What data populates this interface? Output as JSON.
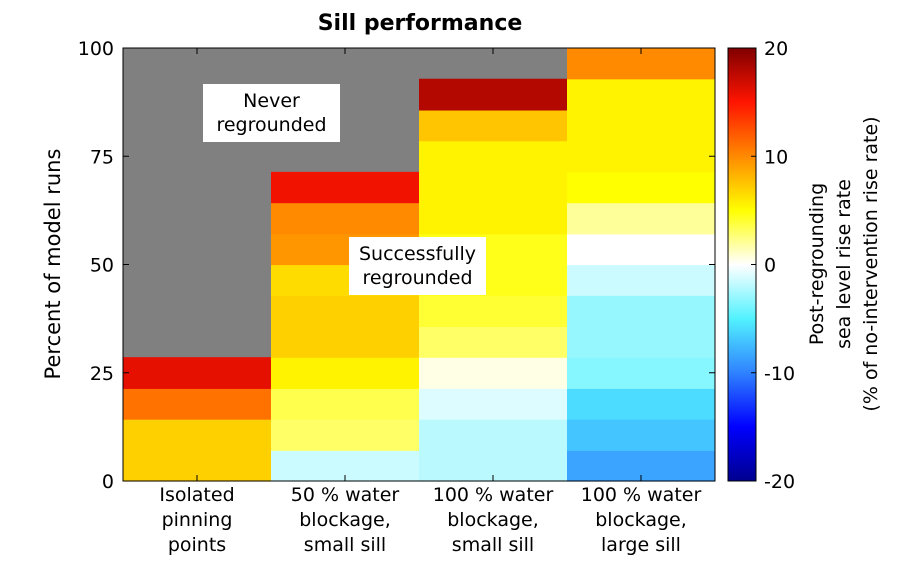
{
  "chart_data": {
    "type": "heatmap",
    "title": "Sill performance",
    "ylabel": "Percent of model runs",
    "ylim": [
      0,
      100
    ],
    "yticks": [
      0,
      25,
      50,
      75,
      100
    ],
    "categories": [
      [
        "Isolated",
        "pinning",
        "points"
      ],
      [
        "50 % water",
        "blockage,",
        "small sill"
      ],
      [
        "100 % water",
        "blockage,",
        "small sill"
      ],
      [
        "100 % water",
        "blockage,",
        "large sill"
      ]
    ],
    "never_regrounded_color": "#808080",
    "columns": [
      {
        "never_regrounded_percent": 71.4,
        "segments": [
          {
            "from": 0,
            "to": 14.3,
            "value": 7
          },
          {
            "from": 14.3,
            "to": 21.4,
            "value": 11
          },
          {
            "from": 21.4,
            "to": 28.6,
            "value": 16
          }
        ]
      },
      {
        "never_regrounded_percent": 28.6,
        "segments": [
          {
            "from": 0,
            "to": 7.1,
            "value": -1.5
          },
          {
            "from": 7.1,
            "to": 14.3,
            "value": 3
          },
          {
            "from": 14.3,
            "to": 21.4,
            "value": 3.5
          },
          {
            "from": 21.4,
            "to": 28.6,
            "value": 5.5
          },
          {
            "from": 28.6,
            "to": 35.7,
            "value": 7
          },
          {
            "from": 35.7,
            "to": 42.9,
            "value": 7
          },
          {
            "from": 42.9,
            "to": 50,
            "value": 6.5
          },
          {
            "from": 50,
            "to": 57.1,
            "value": 9.5
          },
          {
            "from": 57.1,
            "to": 64.3,
            "value": 10
          },
          {
            "from": 64.3,
            "to": 71.4,
            "value": 15.5
          }
        ]
      },
      {
        "never_regrounded_percent": 7.1,
        "segments": [
          {
            "from": 0,
            "to": 14.3,
            "value": -2
          },
          {
            "from": 14.3,
            "to": 21.4,
            "value": -1
          },
          {
            "from": 21.4,
            "to": 28.6,
            "value": 0.5
          },
          {
            "from": 28.6,
            "to": 35.7,
            "value": 3
          },
          {
            "from": 35.7,
            "to": 42.9,
            "value": 4
          },
          {
            "from": 42.9,
            "to": 50,
            "value": 4.5
          },
          {
            "from": 50,
            "to": 57.1,
            "value": 4.5
          },
          {
            "from": 57.1,
            "to": 78.6,
            "value": 5.5
          },
          {
            "from": 78.6,
            "to": 85.7,
            "value": 7.5
          },
          {
            "from": 85.7,
            "to": 92.9,
            "value": 18
          }
        ]
      },
      {
        "never_regrounded_percent": 0,
        "segments": [
          {
            "from": 0,
            "to": 7.1,
            "value": -8.5
          },
          {
            "from": 7.1,
            "to": 14.3,
            "value": -7
          },
          {
            "from": 14.3,
            "to": 21.4,
            "value": -6
          },
          {
            "from": 21.4,
            "to": 28.6,
            "value": -3.5
          },
          {
            "from": 28.6,
            "to": 42.9,
            "value": -3
          },
          {
            "from": 42.9,
            "to": 50,
            "value": -1.5
          },
          {
            "from": 50,
            "to": 57.1,
            "value": 0
          },
          {
            "from": 57.1,
            "to": 64.3,
            "value": 2
          },
          {
            "from": 64.3,
            "to": 71.4,
            "value": 5
          },
          {
            "from": 71.4,
            "to": 92.9,
            "value": 5.5
          },
          {
            "from": 92.9,
            "to": 100,
            "value": 10
          }
        ]
      }
    ],
    "annotations": [
      {
        "lines": [
          "Never",
          "regrounded"
        ]
      },
      {
        "lines": [
          "Successfully",
          "regrounded"
        ]
      }
    ],
    "colorbar": {
      "range": [
        -20,
        20
      ],
      "ticks": [
        -20,
        -10,
        0,
        10,
        20
      ],
      "label_lines": [
        "Post-regrounding",
        "sea level rise rate",
        "(% of no-intervention rise rate)"
      ],
      "colormap": "jet-white",
      "stops": [
        {
          "v": -20,
          "color": "#00008f"
        },
        {
          "v": -15,
          "color": "#0000ff"
        },
        {
          "v": -10,
          "color": "#2f82ff"
        },
        {
          "v": -5,
          "color": "#52f2ff"
        },
        {
          "v": 0,
          "color": "#ffffff"
        },
        {
          "v": 5,
          "color": "#ffff00"
        },
        {
          "v": 10,
          "color": "#ff8a00"
        },
        {
          "v": 15,
          "color": "#ff1400"
        },
        {
          "v": 20,
          "color": "#800000"
        }
      ]
    }
  }
}
